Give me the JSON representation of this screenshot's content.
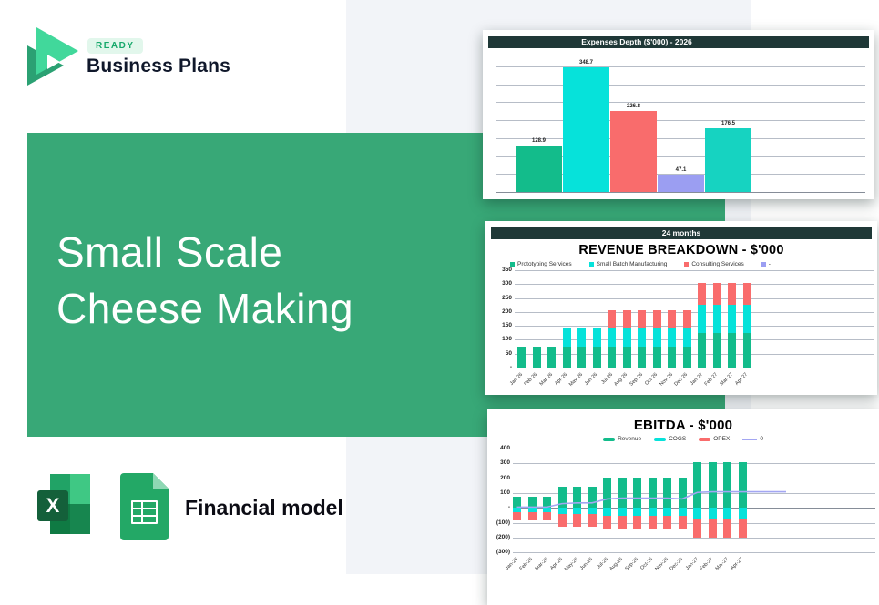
{
  "brand": {
    "badge": "READY",
    "name": "Business Plans"
  },
  "hero": {
    "title_line1": "Small Scale",
    "title_line2": "Cheese Making"
  },
  "footer": {
    "label": "Financial model",
    "excel_letter": "X"
  },
  "colors": {
    "panel_green": "#38a877",
    "header_dark": "#1f3837",
    "emerald": "#13bc8b",
    "cyan": "#06e2da",
    "red": "#f96c6c",
    "periwinkle": "#9b9ef2",
    "teal": "#16d3c1",
    "line_purple": "#a3a6f2",
    "badge_bg": "#e2f7ec",
    "badge_text": "#18a96c"
  },
  "chart_data": [
    {
      "type": "bar",
      "title": "Expenses Depth ($'000) - 2026",
      "values": [
        128.9,
        348.7,
        226.8,
        47.1,
        176.5
      ],
      "bar_colors": [
        "#13bc8b",
        "#06e2da",
        "#f96c6c",
        "#9b9ef2",
        "#16d3c1"
      ],
      "ylim": [
        0,
        350
      ],
      "grid_step": 50,
      "grid": true,
      "data_labels": true
    },
    {
      "type": "stacked-bar",
      "header_badge": "24 months",
      "title": "REVENUE BREAKDOWN - $'000",
      "categories": [
        "Jan-26",
        "Feb-26",
        "Mar-26",
        "Apr-26",
        "May-26",
        "Jun-26",
        "Jul-26",
        "Aug-26",
        "Sep-26",
        "Oct-26",
        "Nov-26",
        "Dec-26",
        "Jan-27",
        "Feb-27",
        "Mar-27",
        "Apr-27"
      ],
      "series": [
        {
          "name": "Prototyping Services",
          "color": "#13bc8b",
          "values": [
            75,
            75,
            75,
            75,
            75,
            75,
            75,
            75,
            75,
            75,
            75,
            75,
            125,
            125,
            125,
            125
          ]
        },
        {
          "name": "Small Batch Manufacturing",
          "color": "#06e2da",
          "values": [
            0,
            0,
            0,
            70,
            70,
            70,
            70,
            70,
            70,
            70,
            70,
            70,
            100,
            100,
            100,
            100
          ]
        },
        {
          "name": "Consulting Services",
          "color": "#f96c6c",
          "values": [
            0,
            0,
            0,
            0,
            0,
            0,
            60,
            60,
            60,
            60,
            60,
            60,
            80,
            80,
            80,
            80
          ]
        },
        {
          "name": "-",
          "color": "#9b9ef2",
          "values": [
            0,
            0,
            0,
            0,
            0,
            0,
            0,
            0,
            0,
            0,
            0,
            0,
            0,
            0,
            0,
            0
          ]
        }
      ],
      "yticks": [
        "350",
        "300",
        "250",
        "200",
        "150",
        "100",
        "50",
        "-"
      ],
      "ylim": [
        0,
        350
      ],
      "grid_step": 50,
      "legend_position": "top"
    },
    {
      "type": "stacked-bar-line",
      "title": "EBITDA - $'000",
      "categories": [
        "Jan-26",
        "Feb-26",
        "Mar-26",
        "Apr-26",
        "May-26",
        "Jun-26",
        "Jul-26",
        "Aug-26",
        "Sep-26",
        "Oct-26",
        "Nov-26",
        "Dec-26",
        "Jan-27",
        "Feb-27",
        "Mar-27",
        "Apr-27"
      ],
      "series": [
        {
          "name": "Revenue",
          "color": "#13bc8b",
          "values": [
            75,
            75,
            75,
            145,
            145,
            145,
            205,
            205,
            205,
            205,
            205,
            205,
            305,
            305,
            305,
            305
          ]
        },
        {
          "name": "COGS",
          "color": "#06e2da",
          "values": [
            -28,
            -28,
            -28,
            -44,
            -44,
            -44,
            -56,
            -56,
            -56,
            -56,
            -56,
            -56,
            -72,
            -72,
            -72,
            -72
          ]
        },
        {
          "name": "OPEX",
          "color": "#f96c6c",
          "values": [
            -58,
            -58,
            -58,
            -83,
            -83,
            -83,
            -88,
            -88,
            -88,
            -88,
            -88,
            -88,
            -130,
            -130,
            -130,
            -130
          ]
        }
      ],
      "line": {
        "name": "0",
        "color": "#a3a6f2",
        "values": [
          5,
          5,
          5,
          28,
          33,
          33,
          60,
          65,
          65,
          65,
          65,
          60,
          104,
          108,
          108,
          108
        ]
      },
      "yticks": [
        "400",
        "300",
        "200",
        "100",
        "-",
        "(100)",
        "(200)",
        "(300)"
      ],
      "ylim": [
        -300,
        400
      ],
      "grid_step": 100,
      "legend_position": "top-right"
    }
  ]
}
